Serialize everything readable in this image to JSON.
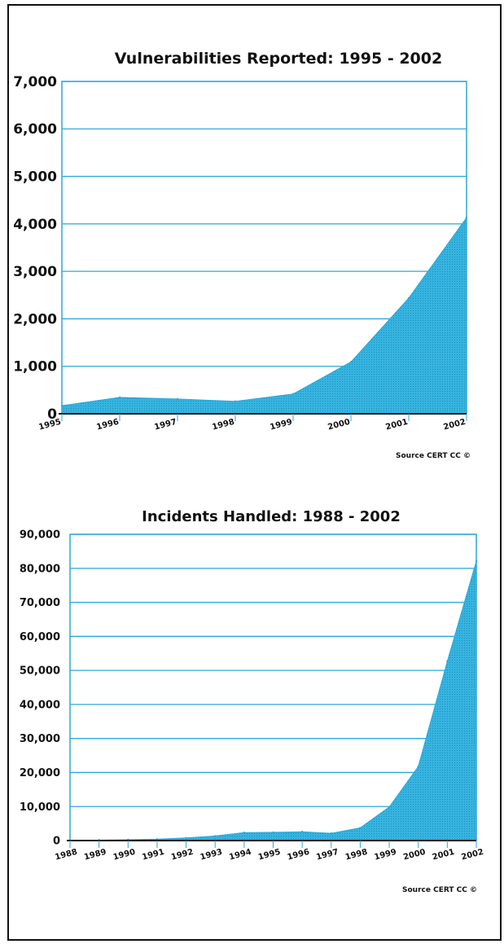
{
  "colors": {
    "area": "#36b4df",
    "grid": "#2aa9d9",
    "frame": "#111111"
  },
  "chart_data": [
    {
      "type": "area",
      "title": "Vulnerabilities Reported: 1995 - 2002",
      "x": [
        "1995",
        "1996",
        "1997",
        "1998",
        "1999",
        "2000",
        "2001",
        "2002"
      ],
      "series": [
        {
          "values": [
            171,
            345,
            311,
            262,
            417,
            1090,
            2437,
            4129
          ]
        }
      ],
      "yticks": [
        "0",
        "1,000",
        "2,000",
        "3,000",
        "4,000",
        "5,000",
        "6,000",
        "7,000"
      ],
      "ylim": [
        0,
        7000
      ],
      "grid": true,
      "source": "Source CERT CC ©"
    },
    {
      "type": "area",
      "title": "Incidents Handled: 1988 - 2002",
      "x": [
        "1988",
        "1989",
        "1990",
        "1991",
        "1992",
        "1993",
        "1994",
        "1995",
        "1996",
        "1997",
        "1998",
        "1999",
        "2000",
        "2001",
        "2002"
      ],
      "series": [
        {
          "values": [
            6,
            132,
            252,
            406,
            773,
            1334,
            2340,
            2412,
            2573,
            2134,
            3734,
            9859,
            21756,
            52658,
            82094
          ]
        }
      ],
      "yticks": [
        "0",
        "10,000",
        "20,000",
        "30,000",
        "40,000",
        "50,000",
        "60,000",
        "70,000",
        "80,000",
        "90,000"
      ],
      "ylim": [
        0,
        90000
      ],
      "grid": true,
      "source": "Source CERT CC ©"
    }
  ]
}
